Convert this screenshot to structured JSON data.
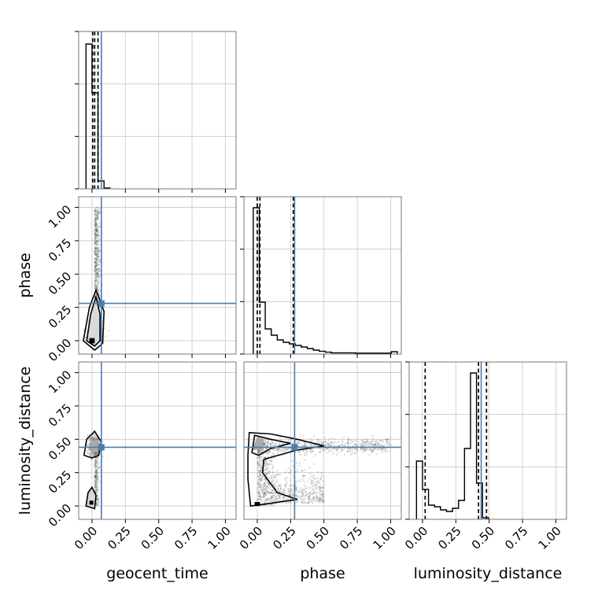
{
  "chart_data": {
    "type": "corner",
    "parameters": [
      "geocent_time",
      "phase",
      "luminosity_distance"
    ],
    "axis_range": [
      -0.1,
      1.08
    ],
    "ticks": [
      0.0,
      0.25,
      0.5,
      0.75,
      1.0
    ],
    "tick_labels": [
      "0.00",
      "0.25",
      "0.50",
      "0.75",
      "1.00"
    ],
    "grid": true,
    "truths": {
      "geocent_time": 0.07,
      "phase": 0.28,
      "luminosity_distance": 0.44
    },
    "truth_color": "#4b7cad",
    "histograms": [
      {
        "parameter": "geocent_time",
        "bin_width": 0.045,
        "bins_start": -0.045,
        "counts": [
          0.92,
          0.61,
          0.05,
          0.005
        ],
        "quantiles": [
          0.005,
          0.02,
          0.045
        ]
      },
      {
        "parameter": "phase",
        "bin_width": 0.045,
        "bins_start": -0.03,
        "counts": [
          0.93,
          0.33,
          0.16,
          0.12,
          0.09,
          0.075,
          0.065,
          0.055,
          0.045,
          0.035,
          0.025,
          0.018,
          0.012,
          0.008,
          0.008,
          0.008,
          0.008,
          0.006,
          0.006,
          0.006,
          0.006,
          0.006,
          0.006,
          0.015
        ],
        "quantiles": [
          0.0,
          0.02,
          0.27
        ]
      },
      {
        "parameter": "luminosity_distance",
        "bin_width": 0.045,
        "bins_start": -0.045,
        "counts": [
          0.37,
          0.19,
          0.09,
          0.08,
          0.06,
          0.05,
          0.07,
          0.12,
          0.45,
          0.93,
          0.23,
          0.01
        ],
        "quantiles": [
          0.02,
          0.42,
          0.48
        ]
      }
    ],
    "scatter_2d": [
      {
        "x": "geocent_time",
        "y": "phase"
      },
      {
        "x": "geocent_time",
        "y": "luminosity_distance"
      },
      {
        "x": "phase",
        "y": "luminosity_distance"
      }
    ]
  }
}
